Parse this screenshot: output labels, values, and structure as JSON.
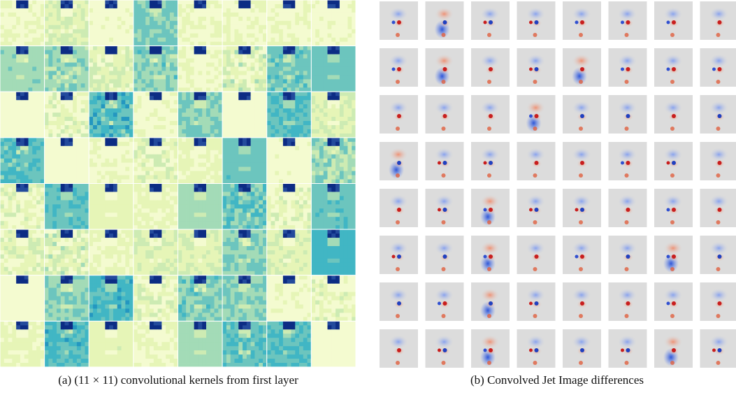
{
  "panels": [
    {
      "caption": "(a) (11 × 11) convolutional kernels from first layer"
    },
    {
      "caption": "(b) Convolved Jet Image differences"
    }
  ]
}
